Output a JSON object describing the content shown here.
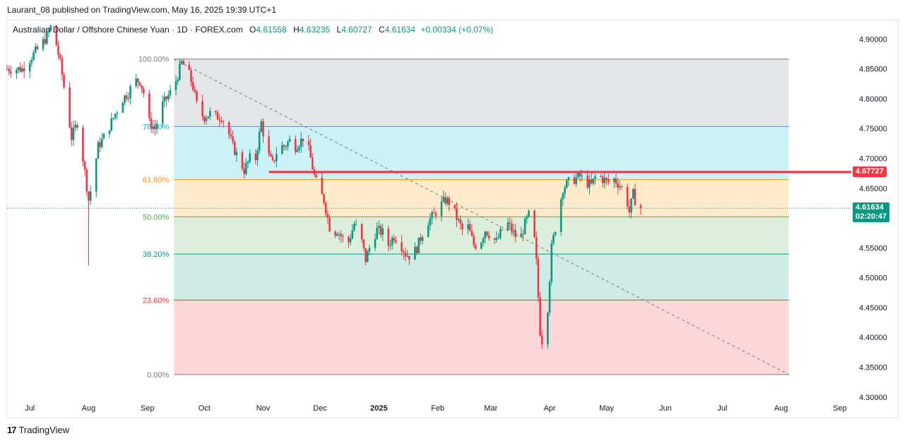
{
  "header": {
    "publisher": "Laurant_08 published on TradingView.com, May 16, 2025 19:39 UTC+1"
  },
  "legend": {
    "symbol": "Australian Dollar / Offshore Chinese Yuan · 1D · FOREX.com",
    "open_label": "O",
    "open": "4.61558",
    "high_label": "H",
    "high": "4.63235",
    "low_label": "L",
    "low": "4.60727",
    "close_label": "C",
    "close": "4.61634",
    "change": "+0.00334 (+0.07%)"
  },
  "footer": {
    "brand": "TradingView"
  },
  "price_tags": {
    "resistance": "4.67727",
    "last": "4.61634",
    "countdown": "02:20:47"
  },
  "colors": {
    "up": "#089981",
    "down": "#f23645",
    "resistance": "#f23645",
    "fib_100": "#787b86",
    "fib_786": "#00bcd4",
    "fib_618": "#ff9800",
    "fib_50": "#4caf50",
    "fib_382": "#089981",
    "fib_236": "#f23645",
    "fib_0": "#787b86"
  },
  "chart_data": {
    "type": "candlestick",
    "y_axis": {
      "range": [
        4.295,
        4.93
      ],
      "ticks": [
        "4.90000",
        "4.85000",
        "4.80000",
        "4.75000",
        "4.70000",
        "4.65000",
        "4.60000",
        "4.55000",
        "4.50000",
        "4.45000",
        "4.40000",
        "4.35000",
        "4.30000"
      ]
    },
    "x_axis": {
      "ticks": [
        "Jul",
        "Aug",
        "Sep",
        "Oct",
        "Nov",
        "Dec",
        "2025",
        "Feb",
        "Mar",
        "Apr",
        "May",
        "Jun",
        "Jul",
        "Aug",
        "Sep"
      ],
      "tick_days": [
        0,
        31,
        62,
        92,
        123,
        153,
        184,
        215,
        243,
        274,
        304,
        335,
        365,
        396,
        427
      ],
      "range_days": [
        -12,
        433
      ]
    },
    "fibonacci": {
      "start_day": 76,
      "end_day": 400,
      "price_high": 4.8665,
      "price_low": 4.3375,
      "levels": [
        {
          "label": "100.00%",
          "price": 4.8665
        },
        {
          "label": "78.60%",
          "price": 4.7533
        },
        {
          "label": "61.80%",
          "price": 4.6644
        },
        {
          "label": "50.00%",
          "price": 4.602
        },
        {
          "label": "38.20%",
          "price": 4.5396
        },
        {
          "label": "23.60%",
          "price": 4.4624
        },
        {
          "label": "0.00%",
          "price": 4.3375
        }
      ]
    },
    "resistance_line": {
      "start_day": 126,
      "price": 4.67727
    },
    "trend_line": {
      "start": {
        "day": 76,
        "price": 4.866
      },
      "end": {
        "day": 400,
        "price": 4.338
      }
    },
    "last_price": 4.61634,
    "anchors": [
      [
        -12,
        4.85
      ],
      [
        -4,
        4.85
      ],
      [
        2,
        4.875
      ],
      [
        6,
        4.89
      ],
      [
        9,
        4.905
      ],
      [
        11,
        4.92
      ],
      [
        14,
        4.89
      ],
      [
        16,
        4.86
      ],
      [
        19,
        4.8
      ],
      [
        22,
        4.735
      ],
      [
        25,
        4.76
      ],
      [
        28,
        4.7
      ],
      [
        31,
        4.63
      ],
      [
        33,
        4.66
      ],
      [
        36,
        4.72
      ],
      [
        40,
        4.74
      ],
      [
        45,
        4.775
      ],
      [
        49,
        4.8
      ],
      [
        52,
        4.81
      ],
      [
        55,
        4.83
      ],
      [
        58,
        4.83
      ],
      [
        61,
        4.8
      ],
      [
        63,
        4.76
      ],
      [
        66,
        4.75
      ],
      [
        70,
        4.79
      ],
      [
        74,
        4.81
      ],
      [
        77,
        4.83
      ],
      [
        80,
        4.86
      ],
      [
        83,
        4.85
      ],
      [
        86,
        4.82
      ],
      [
        89,
        4.775
      ],
      [
        92,
        4.77
      ],
      [
        95,
        4.775
      ],
      [
        98,
        4.77
      ],
      [
        101,
        4.77
      ],
      [
        104,
        4.75
      ],
      [
        107,
        4.72
      ],
      [
        110,
        4.7
      ],
      [
        113,
        4.68
      ],
      [
        116,
        4.7
      ],
      [
        119,
        4.7
      ],
      [
        122,
        4.76
      ],
      [
        125,
        4.71
      ],
      [
        128,
        4.69
      ],
      [
        131,
        4.72
      ],
      [
        134,
        4.72
      ],
      [
        137,
        4.73
      ],
      [
        140,
        4.72
      ],
      [
        143,
        4.73
      ],
      [
        145,
        4.74
      ],
      [
        148,
        4.7
      ],
      [
        150,
        4.67
      ],
      [
        152,
        4.65
      ],
      [
        155,
        4.63
      ],
      [
        157,
        4.6
      ],
      [
        159,
        4.57
      ],
      [
        162,
        4.58
      ],
      [
        165,
        4.565
      ],
      [
        168,
        4.56
      ],
      [
        171,
        4.59
      ],
      [
        174,
        4.575
      ],
      [
        177,
        4.53
      ],
      [
        180,
        4.56
      ],
      [
        183,
        4.58
      ],
      [
        186,
        4.575
      ],
      [
        189,
        4.555
      ],
      [
        192,
        4.57
      ],
      [
        195,
        4.56
      ],
      [
        198,
        4.54
      ],
      [
        201,
        4.535
      ],
      [
        204,
        4.55
      ],
      [
        207,
        4.575
      ],
      [
        210,
        4.595
      ],
      [
        213,
        4.605
      ],
      [
        216,
        4.62
      ],
      [
        219,
        4.63
      ],
      [
        222,
        4.625
      ],
      [
        225,
        4.6
      ],
      [
        228,
        4.58
      ],
      [
        231,
        4.585
      ],
      [
        234,
        4.555
      ],
      [
        237,
        4.555
      ],
      [
        240,
        4.58
      ],
      [
        243,
        4.57
      ],
      [
        246,
        4.56
      ],
      [
        249,
        4.58
      ],
      [
        252,
        4.59
      ],
      [
        255,
        4.575
      ],
      [
        258,
        4.56
      ],
      [
        261,
        4.59
      ],
      [
        263,
        4.605
      ],
      [
        265,
        4.6
      ],
      [
        267,
        4.525
      ],
      [
        269,
        4.41
      ],
      [
        271,
        4.38
      ],
      [
        273,
        4.45
      ],
      [
        275,
        4.55
      ],
      [
        278,
        4.6
      ],
      [
        281,
        4.65
      ],
      [
        284,
        4.66
      ],
      [
        287,
        4.665
      ],
      [
        290,
        4.67
      ],
      [
        293,
        4.66
      ],
      [
        296,
        4.655
      ],
      [
        299,
        4.675
      ],
      [
        302,
        4.665
      ],
      [
        305,
        4.66
      ],
      [
        308,
        4.665
      ],
      [
        311,
        4.655
      ],
      [
        314,
        4.64
      ],
      [
        316,
        4.61
      ],
      [
        318,
        4.64
      ],
      [
        320,
        4.62
      ],
      [
        322,
        4.6163
      ]
    ]
  }
}
